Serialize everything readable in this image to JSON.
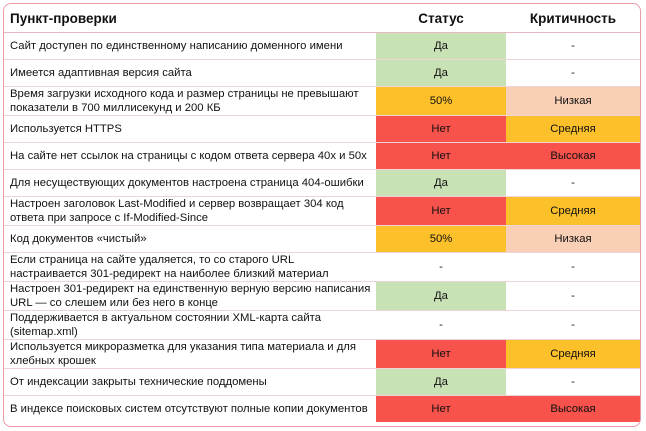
{
  "headers": {
    "item": "Пункт-проверки",
    "status": "Статус",
    "criticality": "Критичность"
  },
  "colors": {
    "frame_border": "#ea9aa8",
    "green": "#c8e2b6",
    "amber": "#fcc02b",
    "red": "#f7524b",
    "peach": "#f9cfb5"
  },
  "rows": [
    {
      "item": "Сайт доступен по единственному написанию доменного имени",
      "status": "Да",
      "status_color": "green",
      "criticality": "-",
      "criticality_color": "none"
    },
    {
      "item": "Имеется адаптивная версия сайта",
      "status": "Да",
      "status_color": "green",
      "criticality": "-",
      "criticality_color": "none"
    },
    {
      "item": "Время загрузки исходного кода и размер страницы не превышают показатели в 700 миллисекунд и 200 КБ",
      "status": "50%",
      "status_color": "amber",
      "criticality": "Низкая",
      "criticality_color": "peach"
    },
    {
      "item": "Используется HTTPS",
      "status": "Нет",
      "status_color": "red",
      "criticality": "Средняя",
      "criticality_color": "amber"
    },
    {
      "item": "На сайте нет ссылок на страницы с кодом ответа сервера 40x и 50x",
      "status": "Нет",
      "status_color": "red",
      "criticality": "Высокая",
      "criticality_color": "red"
    },
    {
      "item": "Для несуществующих документов настроена страница 404-ошибки",
      "status": "Да",
      "status_color": "green",
      "criticality": "-",
      "criticality_color": "none"
    },
    {
      "item": "Настроен заголовок Last-Modified и сервер возвращает 304 код ответа при запросе с If-Modified-Since",
      "status": "Нет",
      "status_color": "red",
      "criticality": "Средняя",
      "criticality_color": "amber"
    },
    {
      "item": "Код документов «чистый»",
      "status": "50%",
      "status_color": "amber",
      "criticality": "Низкая",
      "criticality_color": "peach"
    },
    {
      "item": "Если страница на сайте удаляется, то со старого URL настраивается 301-редирект на наиболее близкий материал",
      "status": "-",
      "status_color": "none",
      "criticality": "-",
      "criticality_color": "none"
    },
    {
      "item": "Настроен 301-редирект на единственную верную версию написания URL — со слешем или без него в конце",
      "status": "Да",
      "status_color": "green",
      "criticality": "-",
      "criticality_color": "none"
    },
    {
      "item": "Поддерживается в актуальном состоянии XML-карта сайта (sitemap.xml)",
      "status": "-",
      "status_color": "none",
      "criticality": "-",
      "criticality_color": "none"
    },
    {
      "item": "Используется микроразметка для указания типа материала и для хлебных крошек",
      "status": "Нет",
      "status_color": "red",
      "criticality": "Средняя",
      "criticality_color": "amber"
    },
    {
      "item": "От индексации закрыты технические поддомены",
      "status": "Да",
      "status_color": "green",
      "criticality": "-",
      "criticality_color": "none"
    },
    {
      "item": "В индексе поисковых систем отсутствуют полные копии документов",
      "status": "Нет",
      "status_color": "red",
      "criticality": "Высокая",
      "criticality_color": "red"
    }
  ]
}
